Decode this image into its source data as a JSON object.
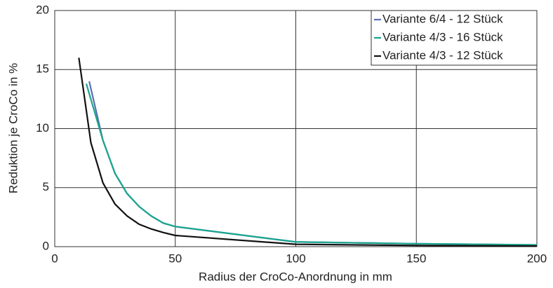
{
  "chart_data": {
    "type": "line",
    "xlabel": "Radius der CroCo-Anordnung in mm",
    "ylabel": "Reduktion je CroCo in %",
    "xlim": [
      0,
      200
    ],
    "xticks": [
      0,
      50,
      100,
      150,
      200
    ],
    "ylim": [
      0,
      20
    ],
    "yticks": [
      0,
      5,
      10,
      15,
      20
    ],
    "grid": true,
    "legend": "upper right",
    "series": [
      {
        "name": "Variante 6/4 - 12 Stück",
        "color": "#5b6fb0",
        "x": [
          14.3,
          20,
          25,
          30,
          35,
          40,
          45,
          50,
          100,
          150,
          200
        ],
        "values": [
          14,
          9.0,
          6.2,
          4.5,
          3.4,
          2.6,
          2.0,
          1.7,
          0.4,
          0.25,
          0.15
        ]
      },
      {
        "name": "Variante 4/3 - 16 Stück",
        "color": "#1aa58e",
        "x": [
          13.1,
          20,
          25,
          30,
          35,
          40,
          45,
          50,
          100,
          150,
          200
        ],
        "values": [
          13.8,
          9.0,
          6.2,
          4.5,
          3.4,
          2.6,
          2.0,
          1.7,
          0.4,
          0.25,
          0.15
        ]
      },
      {
        "name": "Variante 4/3 - 12 Stück",
        "color": "#111111",
        "x": [
          10,
          15,
          20,
          25,
          30,
          35,
          40,
          45,
          50,
          100,
          150,
          200
        ],
        "values": [
          16,
          8.8,
          5.4,
          3.6,
          2.6,
          1.9,
          1.5,
          1.2,
          0.95,
          0.2,
          0.1,
          0.05
        ]
      }
    ]
  }
}
